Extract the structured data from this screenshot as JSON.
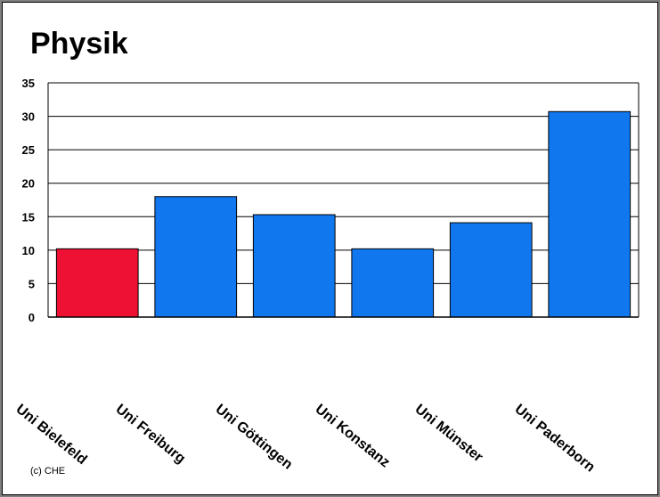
{
  "title": "Physik",
  "copyright": "(c) CHE",
  "chart_data": {
    "type": "bar",
    "title": "Physik",
    "categories": [
      "Uni Bielefeld",
      "Uni Freiburg",
      "Uni Göttingen",
      "Uni Konstanz",
      "Uni Münster",
      "Uni Paderborn"
    ],
    "values": [
      10.2,
      18.0,
      15.3,
      10.2,
      14.1,
      30.7
    ],
    "colors": [
      "#ee1133",
      "#1177ee",
      "#1177ee",
      "#1177ee",
      "#1177ee",
      "#1177ee"
    ],
    "ylim": [
      0,
      35
    ],
    "yticks": [
      0,
      5,
      10,
      15,
      20,
      25,
      30,
      35
    ],
    "grid": true,
    "xlabel": "",
    "ylabel": ""
  }
}
